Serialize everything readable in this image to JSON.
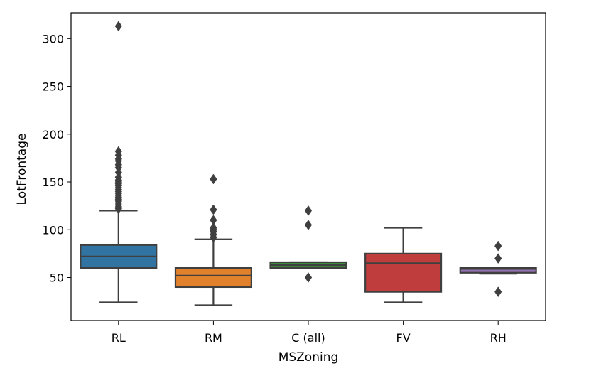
{
  "chart_data": {
    "type": "box",
    "title": "",
    "xlabel": "MSZoning",
    "ylabel": "LotFrontage",
    "ylim": [
      5,
      327
    ],
    "yticks": [
      50,
      100,
      150,
      200,
      250,
      300
    ],
    "categories": [
      "RL",
      "RM",
      "C (all)",
      "FV",
      "RH"
    ],
    "boxes": [
      {
        "category": "RL",
        "color": "#3274a1",
        "whisker_low": 24,
        "q1": 60,
        "median": 72,
        "q3": 84,
        "whisker_high": 120,
        "outliers": [
          122,
          124,
          126,
          128,
          130,
          132,
          134,
          136,
          138,
          140,
          142,
          144,
          146,
          148,
          150,
          152,
          155,
          160,
          165,
          168,
          172,
          174,
          178,
          182,
          313
        ]
      },
      {
        "category": "RM",
        "color": "#e1812c",
        "whisker_low": 21,
        "q1": 40,
        "median": 52,
        "q3": 60,
        "whisker_high": 90,
        "outliers": [
          92,
          95,
          98,
          100,
          102,
          110,
          121,
          153
        ]
      },
      {
        "category": "C (all)",
        "color": "#3a923a",
        "whisker_low": 60,
        "q1": 60,
        "median": 63,
        "q3": 66,
        "whisker_high": 66,
        "outliers": [
          50,
          105,
          120
        ]
      },
      {
        "category": "FV",
        "color": "#c03d3e",
        "whisker_low": 24,
        "q1": 35,
        "median": 65,
        "q3": 75,
        "whisker_high": 102,
        "outliers": []
      },
      {
        "category": "RH",
        "color": "#9372b2",
        "whisker_low": 54,
        "q1": 55,
        "median": 59,
        "q3": 60,
        "whisker_high": 60,
        "outliers": [
          35,
          70,
          83
        ]
      }
    ]
  }
}
